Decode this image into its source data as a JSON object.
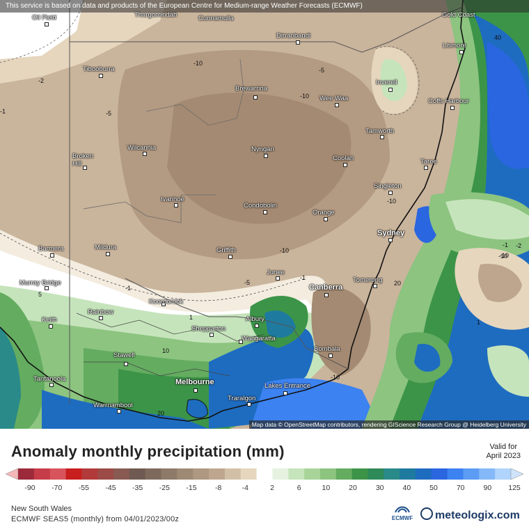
{
  "disclaimer": "This service is based on data and products of the European Centre for Medium-range Weather Forecasts (ECMWF)",
  "attribution": "Map data © OpenStreetMap contributors, rendering GIScience Research Group @ Heidelberg University",
  "title": "Anomaly monthly precipitation (mm)",
  "valid_line1": "Valid for",
  "valid_line2": "April 2023",
  "region": "New South Wales",
  "model": "ECMWF SEAS5 (monthly) from 04/01/2023/00z",
  "brand": "meteologix.com",
  "ecmwf_logo": "ECMWF",
  "scale": {
    "colors": [
      "#9c2a3a",
      "#c63c48",
      "#d8545c",
      "#c81e1e",
      "#b23a3a",
      "#9c4a46",
      "#885a52",
      "#6e5a50",
      "#7e6a5c",
      "#8e7a68",
      "#9e8a74",
      "#ae9882",
      "#bea68e",
      "#d2c0a6",
      "#e6d6be",
      "#ffffff",
      "#e6f2e0",
      "#c6e4bc",
      "#a8d49a",
      "#8cc480",
      "#64ac60",
      "#3c9448",
      "#2e8a58",
      "#2a8a8a",
      "#1f7aa0",
      "#1e6cc0",
      "#2a66e0",
      "#3c82f0",
      "#5c9cf4",
      "#84b8f8",
      "#b0d4fc"
    ],
    "ticks": [
      "-90",
      "-70",
      "-55",
      "-45",
      "-35",
      "-25",
      "-15",
      "-8",
      "-4",
      "2",
      "6",
      "10",
      "20",
      "30",
      "40",
      "50",
      "70",
      "90",
      "125"
    ]
  },
  "cities": [
    {
      "name": "Oil Field"
    },
    {
      "name": "Thargomindah"
    },
    {
      "name": "Cunnamulla"
    },
    {
      "name": "Gold Coast"
    },
    {
      "name": "Dirranbandi"
    },
    {
      "name": "Lismore"
    },
    {
      "name": "Tibooburra"
    },
    {
      "name": "Brewarrina"
    },
    {
      "name": "Inverell"
    },
    {
      "name": "Wee Waa"
    },
    {
      "name": "Coffs Harbour"
    },
    {
      "name": "Tamworth"
    },
    {
      "name": "Broken Hill"
    },
    {
      "name": "Wilcannia"
    },
    {
      "name": "Nyngan"
    },
    {
      "name": "Coolah"
    },
    {
      "name": "Taree"
    },
    {
      "name": "Singleton"
    },
    {
      "name": "Ivanhoe"
    },
    {
      "name": "Condobolin"
    },
    {
      "name": "Orange"
    },
    {
      "name": "Sydney"
    },
    {
      "name": "Barmera"
    },
    {
      "name": "Mildura"
    },
    {
      "name": "Griffith"
    },
    {
      "name": "Junee"
    },
    {
      "name": "Canberra"
    },
    {
      "name": "Tomerong"
    },
    {
      "name": "Murray Bridge"
    },
    {
      "name": "Kooroorook"
    },
    {
      "name": "Rainbow"
    },
    {
      "name": "Keith"
    },
    {
      "name": "Shepparton"
    },
    {
      "name": "Albury"
    },
    {
      "name": "Wangaratta"
    },
    {
      "name": "Bombala"
    },
    {
      "name": "Stawell"
    },
    {
      "name": "Tantanoola"
    },
    {
      "name": "Melbourne"
    },
    {
      "name": "Lakes Entrance"
    },
    {
      "name": "Traralgon"
    },
    {
      "name": "Warrnambool"
    }
  ],
  "contour_labels": [
    "-10",
    "-5",
    "-2",
    "-5",
    "-10",
    "-10",
    "-10",
    "-10",
    "-5",
    "-1",
    "-1",
    "1",
    "10",
    "5",
    "20",
    "-10",
    "20",
    "40",
    "-1",
    "-2",
    "-10",
    "1",
    "-1"
  ]
}
